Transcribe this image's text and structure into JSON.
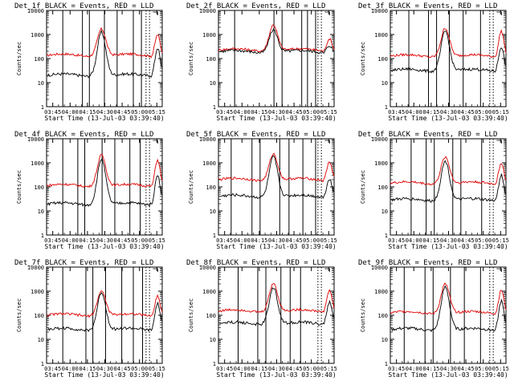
{
  "colors": {
    "background": "#ffffff",
    "axes": "#000000",
    "events": "#000000",
    "lld": "#e00000"
  },
  "legend_text": "BLACK = Events, RED = LLD",
  "shared": {
    "xlabel": "Start Time (13-Jul-03 03:39:40)",
    "ylabel": "Counts/sec",
    "xticks": [
      "03:45",
      "04:00",
      "04:15",
      "04:30",
      "04:45",
      "05:00",
      "05:15"
    ],
    "yticks": [
      "1",
      "10",
      "100",
      "1000",
      "10000"
    ]
  },
  "chart_data": [
    {
      "type": "line",
      "detector": "Det_1f",
      "title": "Det_1f BLACK = Events, RED = LLD",
      "xlabel": "Start Time (13-Jul-03 03:39:40)",
      "ylabel": "Counts/sec",
      "xlim_minutes_after_0339_40": [
        0,
        100
      ],
      "ylim_log": [
        1,
        10000
      ],
      "series": [
        {
          "name": "Events",
          "color": "#000000"
        },
        {
          "name": "LLD",
          "color": "#e00000"
        }
      ]
    },
    {
      "type": "line",
      "detector": "Det_2f",
      "title": "Det_2f BLACK = Events, RED = LLD",
      "xlabel": "Start Time (13-Jul-03 03:39:40)",
      "ylabel": "Counts/sec",
      "xlim_minutes_after_0339_40": [
        0,
        100
      ],
      "ylim_log": [
        1,
        10000
      ],
      "series": [
        {
          "name": "Events",
          "color": "#000000"
        },
        {
          "name": "LLD",
          "color": "#e00000"
        }
      ]
    },
    {
      "type": "line",
      "detector": "Det_3f",
      "title": "Det_3f BLACK = Events, RED = LLD",
      "xlabel": "Start Time (13-Jul-03 03:39:40)",
      "ylabel": "Counts/sec",
      "xlim_minutes_after_0339_40": [
        0,
        100
      ],
      "ylim_log": [
        1,
        10000
      ],
      "series": [
        {
          "name": "Events",
          "color": "#000000"
        },
        {
          "name": "LLD",
          "color": "#e00000"
        }
      ]
    },
    {
      "type": "line",
      "detector": "Det_4f",
      "title": "Det_4f BLACK = Events, RED = LLD",
      "xlabel": "Start Time (13-Jul-03 03:39:40)",
      "ylabel": "Counts/sec",
      "xlim_minutes_after_0339_40": [
        0,
        100
      ],
      "ylim_log": [
        1,
        10000
      ],
      "series": [
        {
          "name": "Events",
          "color": "#000000"
        },
        {
          "name": "LLD",
          "color": "#e00000"
        }
      ]
    },
    {
      "type": "line",
      "detector": "Det_5f",
      "title": "Det_5f BLACK = Events, RED = LLD",
      "xlabel": "Start Time (13-Jul-03 03:39:40)",
      "ylabel": "Counts/sec",
      "xlim_minutes_after_0339_40": [
        0,
        100
      ],
      "ylim_log": [
        1,
        10000
      ],
      "series": [
        {
          "name": "Events",
          "color": "#000000"
        },
        {
          "name": "LLD",
          "color": "#e00000"
        }
      ]
    },
    {
      "type": "line",
      "detector": "Det_6f",
      "title": "Det_6f BLACK = Events, RED = LLD",
      "xlabel": "Start Time (13-Jul-03 03:39:40)",
      "ylabel": "Counts/sec",
      "xlim_minutes_after_0339_40": [
        0,
        100
      ],
      "ylim_log": [
        1,
        10000
      ],
      "series": [
        {
          "name": "Events",
          "color": "#000000"
        },
        {
          "name": "LLD",
          "color": "#e00000"
        }
      ]
    },
    {
      "type": "line",
      "detector": "Det_7f",
      "title": "Det_7f BLACK = Events, RED = LLD",
      "xlabel": "Start Time (13-Jul-03 03:39:40)",
      "ylabel": "Counts/sec",
      "xlim_minutes_after_0339_40": [
        0,
        100
      ],
      "ylim_log": [
        1,
        10000
      ],
      "series": [
        {
          "name": "Events",
          "color": "#000000"
        },
        {
          "name": "LLD",
          "color": "#e00000"
        }
      ]
    },
    {
      "type": "line",
      "detector": "Det_8f",
      "title": "Det_8f BLACK = Events, RED = LLD",
      "xlabel": "Start Time (13-Jul-03 03:39:40)",
      "ylabel": "Counts/sec",
      "xlim_minutes_after_0339_40": [
        0,
        100
      ],
      "ylim_log": [
        1,
        10000
      ],
      "series": [
        {
          "name": "Events",
          "color": "#000000"
        },
        {
          "name": "LLD",
          "color": "#e00000"
        }
      ]
    },
    {
      "type": "line",
      "detector": "Det_9f",
      "title": "Det_9f BLACK = Events, RED = LLD",
      "xlabel": "Start Time (13-Jul-03 03:39:40)",
      "ylabel": "Counts/sec",
      "xlim_minutes_after_0339_40": [
        0,
        100
      ],
      "ylim_log": [
        1,
        10000
      ],
      "series": [
        {
          "name": "Events",
          "color": "#000000"
        },
        {
          "name": "LLD",
          "color": "#e00000"
        }
      ]
    }
  ]
}
